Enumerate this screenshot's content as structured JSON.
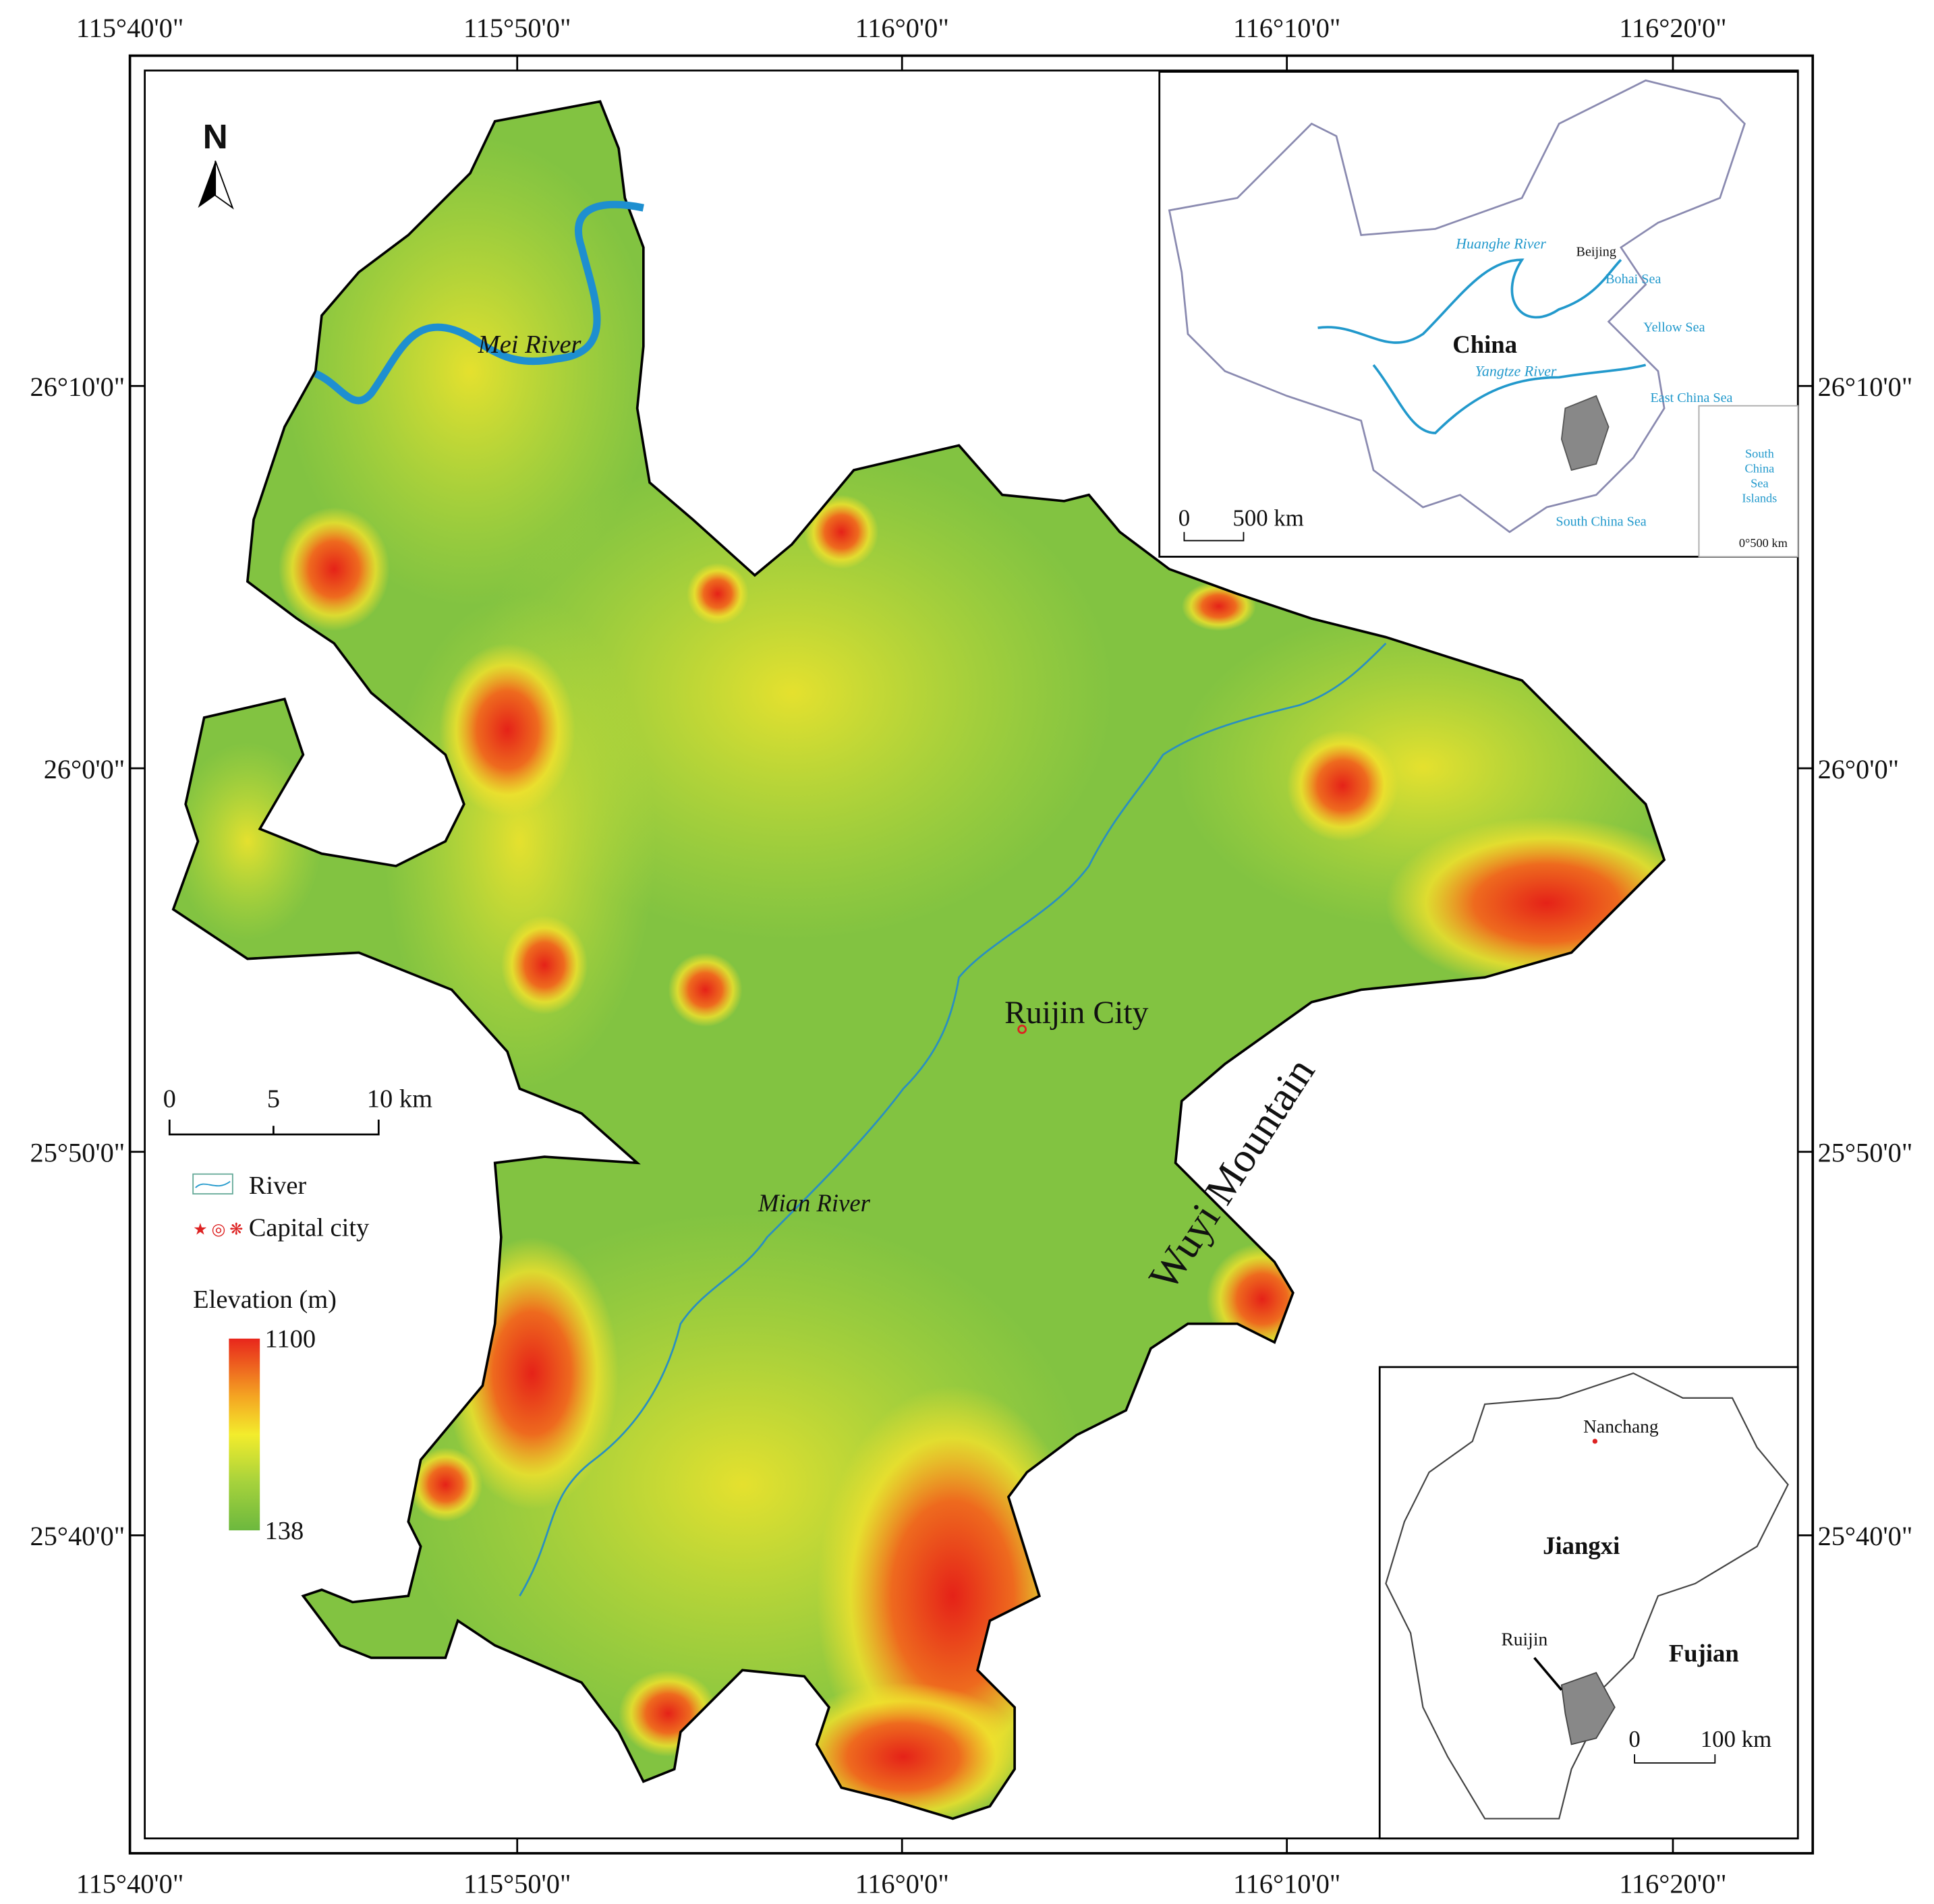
{
  "frame": {
    "top_labels": [
      "115°40'0\"",
      "115°50'0\"",
      "116°0'0\"",
      "116°10'0\"",
      "116°20'0\""
    ],
    "bottom_labels": [
      "115°40'0\"",
      "115°50'0\"",
      "116°0'0\"",
      "116°10'0\"",
      "116°20'0\""
    ],
    "left_labels": [
      "26°10'0\"",
      "26°0'0\"",
      "25°50'0\"",
      "25°40'0\""
    ],
    "right_labels": [
      "26°10'0\"",
      "26°0'0\"",
      "25°50'0\"",
      "25°40'0\""
    ]
  },
  "north": "N",
  "places": {
    "mei_river": "Mei River",
    "ruijin_city": "Ruijin City",
    "mian_river": "Mian River",
    "wuyi_mountain": "Wuyi Mountain"
  },
  "legend": {
    "scale": [
      "0",
      "5",
      "10 km"
    ],
    "river": "River",
    "capital": "Capital city",
    "elevation_title": "Elevation (m)",
    "elevation_max": "1100",
    "elevation_min": "138"
  },
  "china_inset": {
    "huanghe": "Huanghe River",
    "beijing": "Beijing",
    "bohai": "Bohai Sea",
    "yellow_sea": "Yellow Sea",
    "china": "China",
    "yangtze": "Yangtze River",
    "east_china_sea": "East China Sea",
    "south_china_sea": "South China Sea",
    "islands": [
      "South",
      "China",
      "Sea",
      "Islands"
    ],
    "scale": [
      "0",
      "500 km"
    ],
    "islands_scale": "0°500 km"
  },
  "jiangxi_inset": {
    "nanchang": "Nanchang",
    "jiangxi": "Jiangxi",
    "ruijin": "Ruijin",
    "fujian": "Fujian",
    "scale": [
      "0",
      "100 km"
    ]
  }
}
